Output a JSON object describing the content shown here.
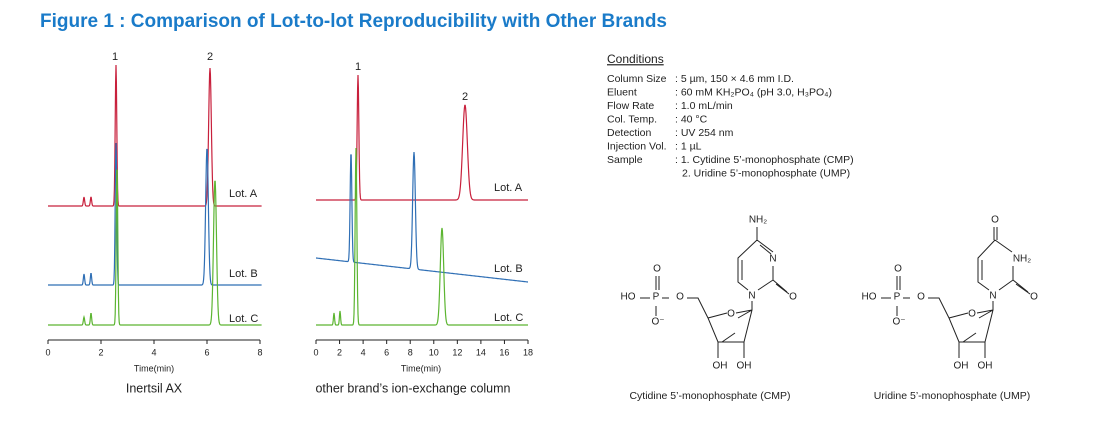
{
  "title": "Figure 1 : Comparison of Lot-to-lot Reproducibility with Other Brands",
  "chromatograms": [
    {
      "peak_labels": [
        "1",
        "2"
      ],
      "lot_labels": [
        "Lot. A",
        "Lot. B",
        "Lot. C"
      ],
      "xticks": [
        0,
        2,
        4,
        6,
        8
      ],
      "xlabel": "Time(min)",
      "caption": "Inertsil AX"
    },
    {
      "peak_labels": [
        "1",
        "2"
      ],
      "lot_labels": [
        "Lot. A",
        "Lot. B",
        "Lot. C"
      ],
      "xticks": [
        0,
        2,
        4,
        6,
        8,
        10,
        12,
        14,
        16,
        18
      ],
      "xlabel": "Time(min)",
      "caption": "other brand’s ion-exchange column"
    }
  ],
  "conditions": {
    "heading": "Conditions",
    "rows": [
      {
        "label": "Column Size",
        "values": [
          ": 5 µm, 150 × 4.6 mm I.D."
        ]
      },
      {
        "label": "Eluent",
        "values": [
          ": 60 mM KH₂PO₄ (pH 3.0, H₃PO₄)"
        ]
      },
      {
        "label": "Flow Rate",
        "values": [
          ": 1.0 mL/min"
        ]
      },
      {
        "label": "Col. Temp.",
        "values": [
          ": 40 °C"
        ]
      },
      {
        "label": "Detection",
        "values": [
          ": UV 254 nm"
        ]
      },
      {
        "label": "Injection Vol.",
        "values": [
          ": 1 µL"
        ]
      },
      {
        "label": "Sample",
        "values": [
          ": 1. Cytidine 5’-monophosphate (CMP)",
          "2. Uridine 5’-monophosphate (UMP)"
        ]
      }
    ]
  },
  "structures": [
    {
      "atoms": [
        "NH₂",
        "N",
        "N",
        "O",
        "HO",
        "P",
        "O",
        "O⁻",
        "O",
        "O",
        "OH",
        "OH"
      ],
      "caption": "Cytidine 5’-monophosphate (CMP)"
    },
    {
      "atoms": [
        "O",
        "NH₂",
        "N",
        "O",
        "HO",
        "P",
        "O",
        "O⁻",
        "O",
        "O",
        "OH",
        "OH"
      ],
      "caption": "Uridine 5’-monophosphate (UMP)"
    }
  ]
}
